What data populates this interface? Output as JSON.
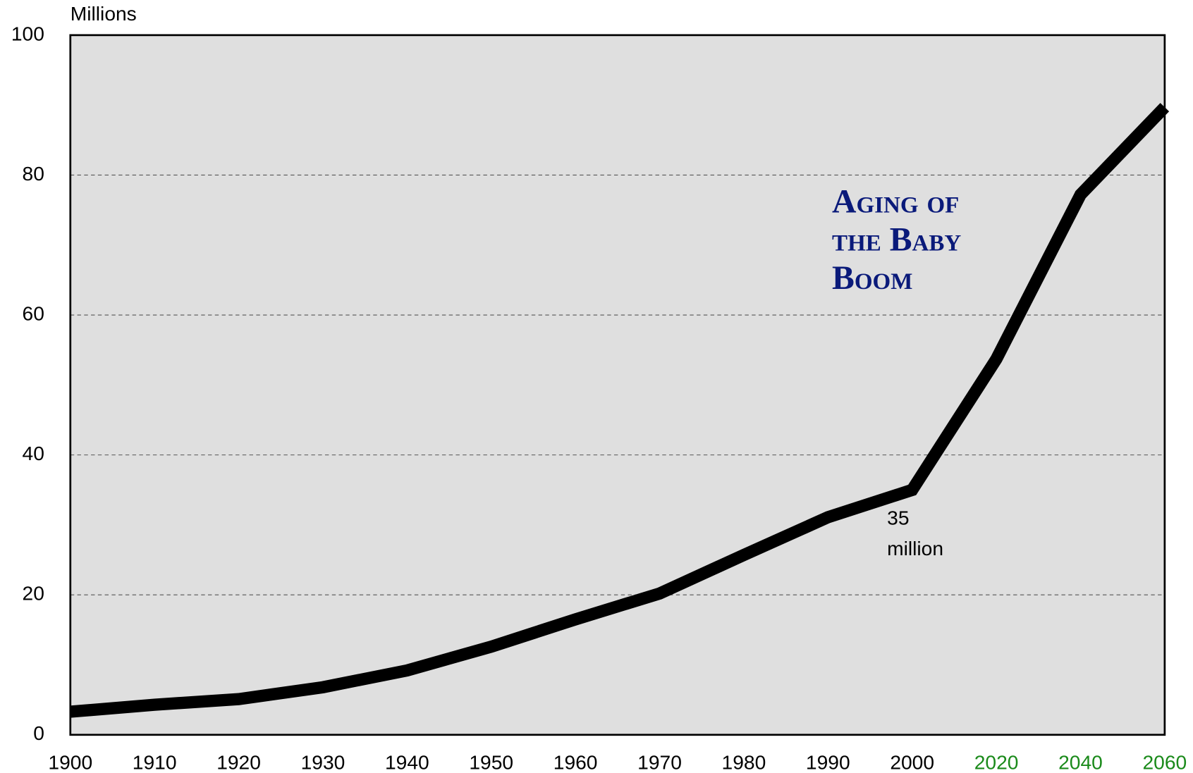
{
  "chart_data": {
    "type": "line",
    "y_axis_label": "Millions",
    "categories": [
      "1900",
      "1910",
      "1920",
      "1930",
      "1940",
      "1950",
      "1960",
      "1970",
      "1980",
      "1990",
      "2000",
      "2020",
      "2040",
      "2060"
    ],
    "category_label_colors": [
      "#000000",
      "#000000",
      "#000000",
      "#000000",
      "#000000",
      "#000000",
      "#000000",
      "#000000",
      "#000000",
      "#000000",
      "#000000",
      "#1a8a1a",
      "#1a8a1a",
      "#1a8a1a"
    ],
    "series": [
      {
        "color": "#000000",
        "values": [
          3.3,
          4.3,
          5.1,
          6.8,
          9.2,
          12.6,
          16.5,
          20.2,
          25.7,
          31.1,
          35,
          53.7,
          77.2,
          89.7
        ]
      }
    ],
    "ylim": [
      0,
      100
    ],
    "yticks": [
      0,
      20,
      40,
      60,
      80,
      100
    ],
    "grid": true,
    "annotations": [
      {
        "lines": [
          "Aging of",
          "the Baby",
          "Boom"
        ],
        "color": "#0a1a7a"
      },
      {
        "lines": [
          "35",
          "million"
        ],
        "color": "#000000"
      }
    ]
  }
}
